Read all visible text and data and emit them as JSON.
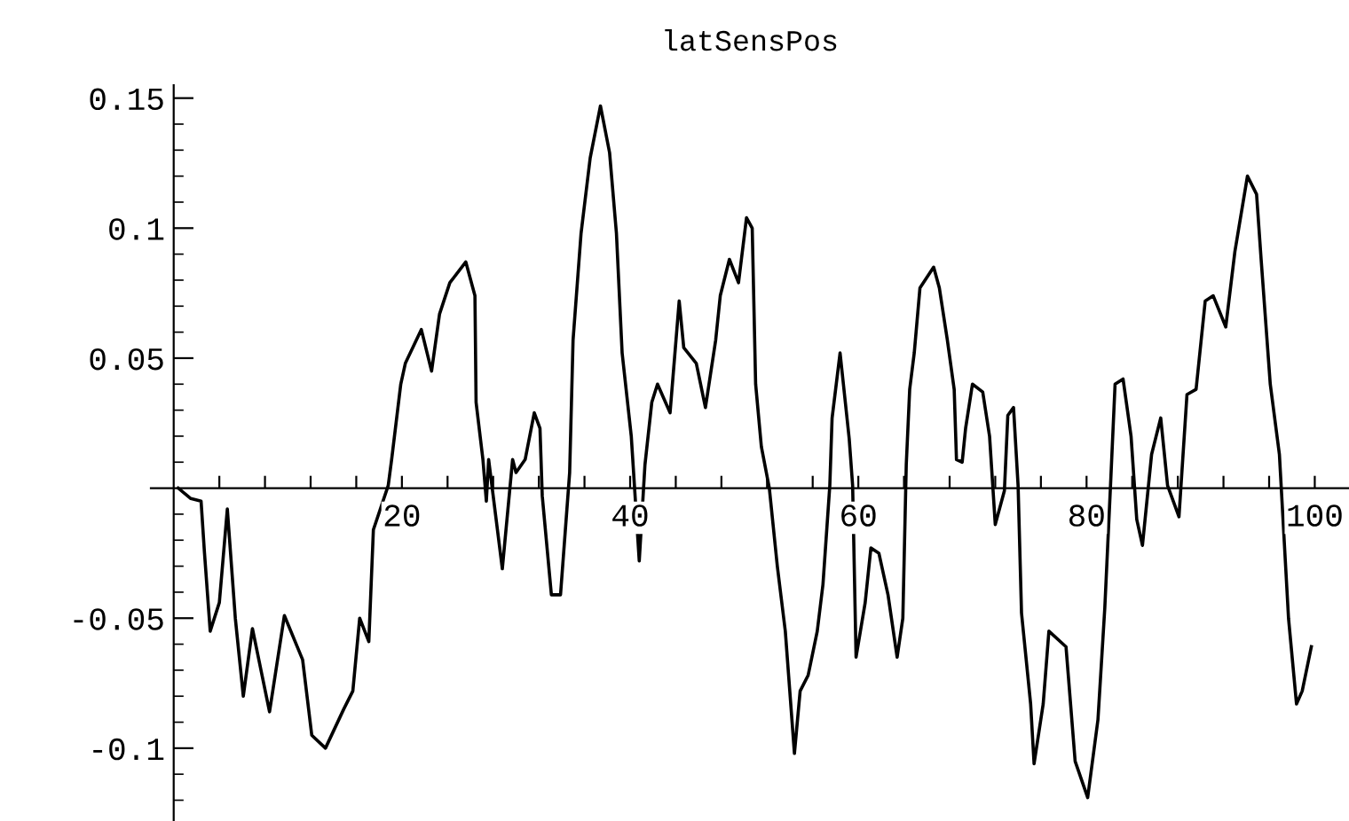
{
  "chart_data": {
    "type": "line",
    "title": "latSensPos",
    "x": [
      0.4,
      1.5,
      2.4,
      2.7,
      3.2,
      4.0,
      4.7,
      5.4,
      6.1,
      6.9,
      8.4,
      9.7,
      11.3,
      12.1,
      13.3,
      14.9,
      15.7,
      16.3,
      17.1,
      17.5,
      18.8,
      19.1,
      19.9,
      20.3,
      21.7,
      22.6,
      23.3,
      24.2,
      25.6,
      26.4,
      26.5,
      27.1,
      27.4,
      27.6,
      28.8,
      29.7,
      30.0,
      30.8,
      31.6,
      32.1,
      32.3,
      33.1,
      33.9,
      34.7,
      35.0,
      35.7,
      36.5,
      37.4,
      38.2,
      38.8,
      39.3,
      40.1,
      40.8,
      41.3,
      41.9,
      42.4,
      43.5,
      44.3,
      44.7,
      45.8,
      46.6,
      47.5,
      47.9,
      48.7,
      49.5,
      50.2,
      50.7,
      51.0,
      51.5,
      52.2,
      52.9,
      53.6,
      54.4,
      54.9,
      55.6,
      56.4,
      56.9,
      57.5,
      57.7,
      58.4,
      59.2,
      59.5,
      59.8,
      60.6,
      61.1,
      61.8,
      62.6,
      63.4,
      63.9,
      64.2,
      64.5,
      64.9,
      65.4,
      66.6,
      67.1,
      67.8,
      68.4,
      68.6,
      69.1,
      69.4,
      70.0,
      70.9,
      71.5,
      72.0,
      72.8,
      73.1,
      73.6,
      74.0,
      74.3,
      75.1,
      75.4,
      76.2,
      76.7,
      78.2,
      79.0,
      80.1,
      81.0,
      81.6,
      82.1,
      82.5,
      83.2,
      83.9,
      84.4,
      84.9,
      85.7,
      86.5,
      87.1,
      88.1,
      88.8,
      89.6,
      90.4,
      91.1,
      92.2,
      93.0,
      94.1,
      94.9,
      95.3,
      96.1,
      96.9,
      97.7,
      98.4,
      98.9,
      99.7
    ],
    "series": [
      {
        "color": "#000000",
        "values": [
          0,
          -0.004,
          -0.005,
          -0.025,
          -0.055,
          -0.044,
          -0.008,
          -0.05,
          -0.08,
          -0.054,
          -0.086,
          -0.049,
          -0.066,
          -0.095,
          -0.1,
          -0.085,
          -0.078,
          -0.05,
          -0.059,
          -0.016,
          0.001,
          0.011,
          0.04,
          0.048,
          0.061,
          0.045,
          0.067,
          0.079,
          0.087,
          0.074,
          0.033,
          0.011,
          -0.005,
          0.011,
          -0.031,
          0.011,
          0.006,
          0.011,
          0.029,
          0.023,
          -0.003,
          -0.041,
          -0.041,
          0.006,
          0.057,
          0.098,
          0.127,
          0.147,
          0.129,
          0.098,
          0.052,
          0.02,
          -0.028,
          0.009,
          0.033,
          0.04,
          0.029,
          0.072,
          0.054,
          0.048,
          0.031,
          0.057,
          0.074,
          0.088,
          0.079,
          0.104,
          0.1,
          0.04,
          0.016,
          0.0,
          -0.03,
          -0.055,
          -0.102,
          -0.078,
          -0.072,
          -0.055,
          -0.037,
          0.001,
          0.027,
          0.052,
          0.019,
          0.001,
          -0.065,
          -0.044,
          -0.023,
          -0.025,
          -0.041,
          -0.065,
          -0.05,
          0.009,
          0.038,
          0.052,
          0.077,
          0.085,
          0.077,
          0.057,
          0.038,
          0.011,
          0.01,
          0.023,
          0.04,
          0.037,
          0.02,
          -0.014,
          -0.001,
          0.028,
          0.031,
          0.001,
          -0.048,
          -0.083,
          -0.106,
          -0.083,
          -0.055,
          -0.061,
          -0.105,
          -0.119,
          -0.089,
          -0.046,
          0.001,
          0.04,
          0.042,
          0.02,
          -0.012,
          -0.022,
          0.013,
          0.027,
          0.001,
          -0.011,
          0.036,
          0.038,
          0.072,
          0.074,
          0.062,
          0.091,
          0.12,
          0.113,
          0.088,
          0.04,
          0.013,
          -0.05,
          -0.083,
          -0.078,
          -0.061
        ]
      }
    ],
    "line_style": "solid",
    "marker": "none",
    "grid": false,
    "legend": false,
    "xlim": [
      -2,
      103
    ],
    "ylim": [
      -0.128,
      0.155
    ],
    "xticks": [
      {
        "value": 4,
        "label": null
      },
      {
        "value": 8,
        "label": null
      },
      {
        "value": 12,
        "label": null
      },
      {
        "value": 16,
        "label": null
      },
      20,
      {
        "value": 24,
        "label": null
      },
      {
        "value": 28,
        "label": null
      },
      {
        "value": 32,
        "label": null
      },
      {
        "value": 36,
        "label": null
      },
      40,
      {
        "value": 44,
        "label": null
      },
      {
        "value": 48,
        "label": null
      },
      {
        "value": 52,
        "label": null
      },
      {
        "value": 56,
        "label": null
      },
      60,
      {
        "value": 64,
        "label": null
      },
      {
        "value": 68,
        "label": null
      },
      {
        "value": 72,
        "label": null
      },
      {
        "value": 76,
        "label": null
      },
      80,
      {
        "value": 84,
        "label": null
      },
      {
        "value": 88,
        "label": null
      },
      {
        "value": 92,
        "label": null
      },
      {
        "value": 96,
        "label": null
      },
      100
    ],
    "yticks": [
      {
        "value": -0.12,
        "label": null
      },
      {
        "value": -0.11,
        "label": null
      },
      {
        "value": -0.1,
        "label": "-0.1"
      },
      {
        "value": -0.09,
        "label": null
      },
      {
        "value": -0.08,
        "label": null
      },
      {
        "value": -0.07,
        "label": null
      },
      {
        "value": -0.06,
        "label": null
      },
      {
        "value": -0.05,
        "label": "-0.05"
      },
      {
        "value": -0.04,
        "label": null
      },
      {
        "value": -0.03,
        "label": null
      },
      {
        "value": -0.02,
        "label": null
      },
      {
        "value": -0.01,
        "label": null
      },
      {
        "value": 0.01,
        "label": null
      },
      {
        "value": 0.02,
        "label": null
      },
      {
        "value": 0.03,
        "label": null
      },
      {
        "value": 0.04,
        "label": null
      },
      0.05,
      {
        "value": 0.06,
        "label": null
      },
      {
        "value": 0.07,
        "label": null
      },
      {
        "value": 0.08,
        "label": null
      },
      {
        "value": 0.09,
        "label": null
      },
      0.1,
      {
        "value": 0.11,
        "label": null
      },
      {
        "value": 0.12,
        "label": null
      },
      {
        "value": 0.13,
        "label": null
      },
      {
        "value": 0.14,
        "label": null
      },
      0.15
    ]
  }
}
